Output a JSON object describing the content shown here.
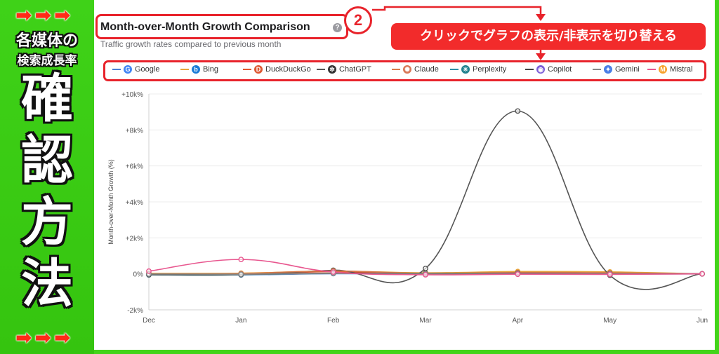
{
  "sidebar": {
    "arrows_top": [
      "➡",
      "➡",
      "➡"
    ],
    "arrows_bottom": [
      "➡",
      "➡",
      "➡"
    ],
    "line1": "各媒体の",
    "line2": "検索成長率",
    "chars": [
      "確",
      "認",
      "方",
      "法"
    ]
  },
  "header": {
    "title": "Month-over-Month Growth Comparison",
    "help": "?",
    "subtitle": "Traffic growth rates compared to previous month",
    "step": "2",
    "callout": "クリックでグラフの表示/非表示を切り替える"
  },
  "legend": [
    {
      "name": "Google",
      "color": "#4a7fd6",
      "icon": "google-icon",
      "glyph": "G",
      "icon_color": "#4285f4"
    },
    {
      "name": "Bing",
      "color": "#e8a53a",
      "icon": "bing-icon",
      "glyph": "b",
      "icon_color": "#1a7bd6"
    },
    {
      "name": "DuckDuckGo",
      "color": "#e2572f",
      "icon": "duckduckgo-icon",
      "glyph": "D",
      "icon_color": "#de5833"
    },
    {
      "name": "ChatGPT",
      "color": "#555555",
      "icon": "chatgpt-icon",
      "glyph": "✲",
      "icon_color": "#333333"
    },
    {
      "name": "Claude",
      "color": "#d97a4a",
      "icon": "claude-icon",
      "glyph": "✺",
      "icon_color": "#d97757"
    },
    {
      "name": "Perplexity",
      "color": "#2c8ea6",
      "icon": "perplexity-icon",
      "glyph": "✳",
      "icon_color": "#20808d"
    },
    {
      "name": "Copilot",
      "color": "#444444",
      "icon": "copilot-icon",
      "glyph": "◉",
      "icon_color": "#7b5cd6"
    },
    {
      "name": "Gemini",
      "color": "#888888",
      "icon": "gemini-icon",
      "glyph": "✦",
      "icon_color": "#4a7ee6"
    },
    {
      "name": "Mistral",
      "color": "#e8578f",
      "icon": "mistral-icon",
      "glyph": "M",
      "icon_color": "#f7a12b"
    }
  ],
  "chart_data": {
    "type": "line",
    "title": "Month-over-Month Growth Comparison",
    "subtitle": "Traffic growth rates compared to previous month",
    "xlabel": "",
    "ylabel": "Month-over-Month Growth (%)",
    "categories": [
      "Dec",
      "Jan",
      "Feb",
      "Mar",
      "Apr",
      "May",
      "Jun"
    ],
    "ylim": [
      -2000,
      10000
    ],
    "yticks": [
      -2000,
      0,
      2000,
      4000,
      6000,
      8000,
      10000
    ],
    "ytick_labels": [
      "-2k%",
      "0%",
      "+2k%",
      "+4k%",
      "+6k%",
      "+8k%",
      "+10k%"
    ],
    "grid": true,
    "series": [
      {
        "name": "Google",
        "color": "#4a7fd6",
        "values": [
          -50,
          -60,
          10,
          -20,
          0,
          -10,
          0
        ]
      },
      {
        "name": "Bing",
        "color": "#e8a53a",
        "values": [
          30,
          40,
          150,
          60,
          130,
          110,
          0
        ]
      },
      {
        "name": "DuckDuckGo",
        "color": "#e2572f",
        "values": [
          -40,
          -30,
          120,
          -40,
          60,
          40,
          0
        ]
      },
      {
        "name": "ChatGPT",
        "color": "#555555",
        "values": [
          -60,
          -50,
          200,
          300,
          9050,
          -80,
          0
        ]
      },
      {
        "name": "Claude",
        "color": "#d97a4a",
        "values": [
          0,
          20,
          160,
          20,
          80,
          60,
          0
        ]
      },
      {
        "name": "Perplexity",
        "color": "#2c8ea6",
        "values": [
          -30,
          -40,
          30,
          10,
          20,
          -10,
          0
        ]
      },
      {
        "name": "Copilot",
        "color": "#444444",
        "values": [
          -20,
          -30,
          40,
          20,
          30,
          10,
          0
        ]
      },
      {
        "name": "Gemini",
        "color": "#888888",
        "values": [
          -10,
          -20,
          20,
          0,
          10,
          0,
          0
        ]
      },
      {
        "name": "Mistral",
        "color": "#e8578f",
        "values": [
          150,
          800,
          100,
          -50,
          -20,
          -30,
          0
        ]
      }
    ]
  }
}
